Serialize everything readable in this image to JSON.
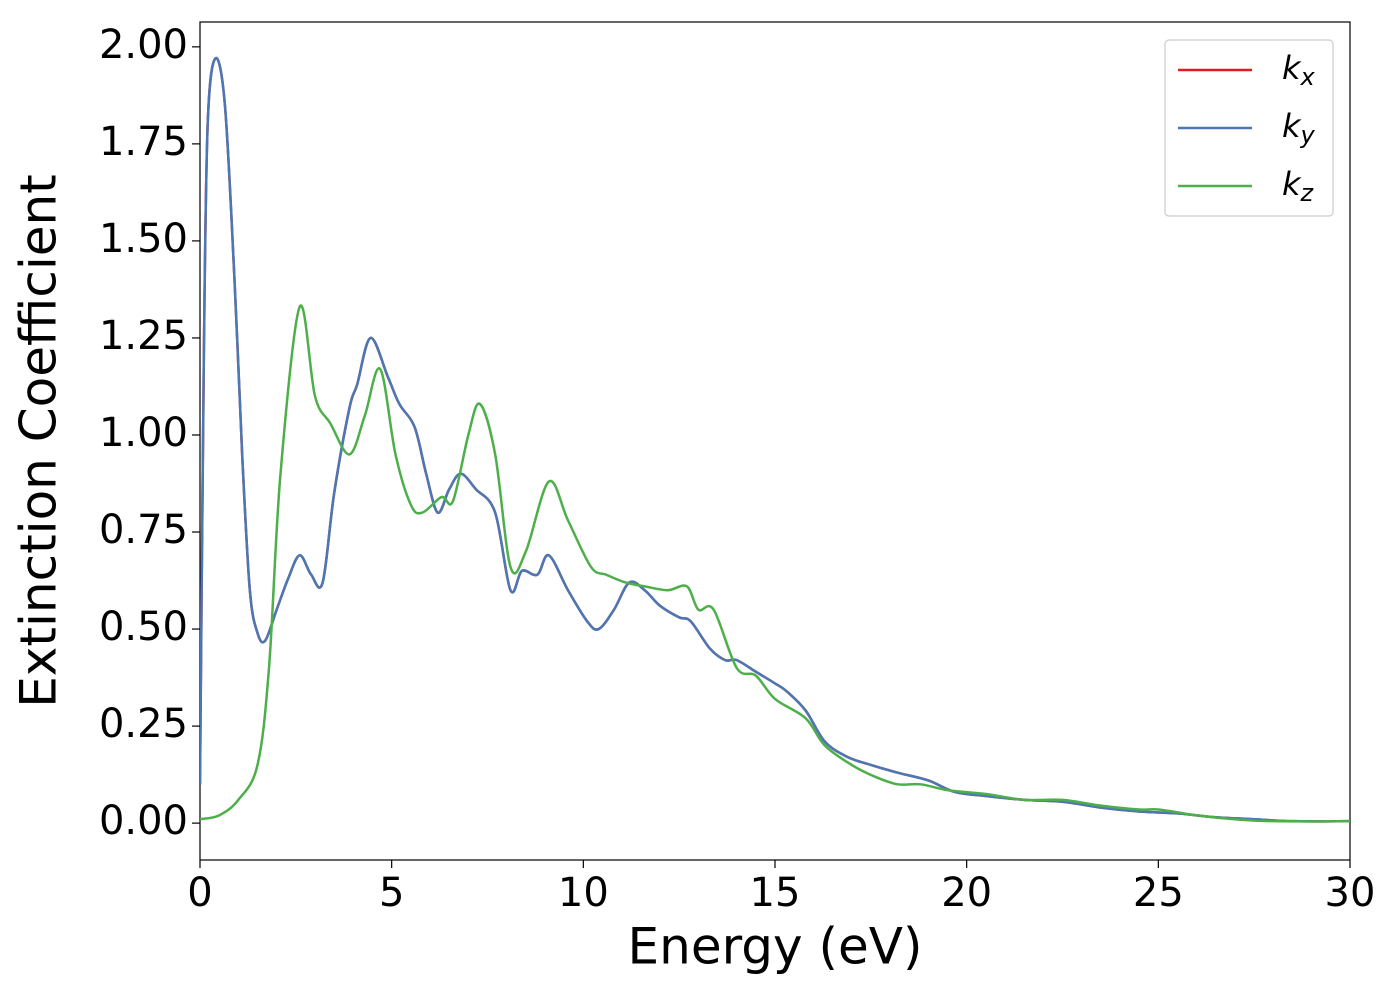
{
  "chart_data": {
    "type": "line",
    "xlabel": "Energy (eV)",
    "ylabel": "Extinction Coefficient",
    "xlim": [
      0,
      30
    ],
    "xticks": [
      0,
      5,
      10,
      15,
      20,
      25,
      30
    ],
    "ylim": [
      -0.095,
      2.064
    ],
    "yticks": [
      {
        "value": 0,
        "label": "0.00"
      },
      {
        "value": 0.25,
        "label": "0.25"
      },
      {
        "value": 0.5,
        "label": "0.50"
      },
      {
        "value": 0.75,
        "label": "0.75"
      },
      {
        "value": 1,
        "label": "1.00"
      },
      {
        "value": 1.25,
        "label": "1.25"
      },
      {
        "value": 1.5,
        "label": "1.50"
      },
      {
        "value": 1.75,
        "label": "1.75"
      },
      {
        "value": 2,
        "label": "2.00"
      }
    ],
    "legend": "upper right",
    "series": [
      {
        "name": "kx",
        "color": "#e41a1c",
        "x": [
          0,
          0.1,
          0.2,
          0.4,
          0.65,
          0.9,
          1.1,
          1.3,
          1.5,
          1.7,
          2.0,
          2.3,
          2.6,
          2.9,
          3.2,
          3.5,
          3.9,
          4.1,
          4.45,
          4.9,
          5.2,
          5.6,
          5.9,
          6.2,
          6.5,
          6.8,
          7.2,
          7.7,
          8.1,
          8.4,
          8.8,
          9.1,
          9.6,
          10.1,
          10.4,
          10.8,
          11.2,
          11.6,
          12.0,
          12.5,
          12.8,
          13.3,
          13.7,
          14.0,
          14.5,
          15.0,
          15.3,
          15.8,
          16.3,
          16.9,
          17.5,
          18.2,
          19.0,
          19.7,
          20.5,
          21.5,
          22.5,
          23.5,
          24.5,
          25.5,
          26.5,
          27.5,
          28.5,
          30
        ],
        "values": [
          0.1,
          1.2,
          1.8,
          1.97,
          1.85,
          1.4,
          0.95,
          0.6,
          0.49,
          0.47,
          0.55,
          0.63,
          0.69,
          0.64,
          0.62,
          0.85,
          1.07,
          1.13,
          1.25,
          1.15,
          1.08,
          1.02,
          0.9,
          0.8,
          0.86,
          0.9,
          0.86,
          0.8,
          0.6,
          0.65,
          0.64,
          0.69,
          0.6,
          0.52,
          0.5,
          0.55,
          0.62,
          0.6,
          0.56,
          0.53,
          0.52,
          0.45,
          0.42,
          0.42,
          0.39,
          0.36,
          0.34,
          0.29,
          0.21,
          0.17,
          0.15,
          0.13,
          0.11,
          0.08,
          0.07,
          0.06,
          0.055,
          0.04,
          0.03,
          0.025,
          0.015,
          0.01,
          0.005,
          0.005
        ]
      },
      {
        "name": "ky",
        "color": "#4a78b4",
        "x": [
          0,
          0.1,
          0.2,
          0.4,
          0.65,
          0.9,
          1.1,
          1.3,
          1.5,
          1.7,
          2.0,
          2.3,
          2.6,
          2.9,
          3.2,
          3.5,
          3.9,
          4.1,
          4.45,
          4.9,
          5.2,
          5.6,
          5.9,
          6.2,
          6.5,
          6.8,
          7.2,
          7.7,
          8.1,
          8.4,
          8.8,
          9.1,
          9.6,
          10.1,
          10.4,
          10.8,
          11.2,
          11.6,
          12.0,
          12.5,
          12.8,
          13.3,
          13.7,
          14.0,
          14.5,
          15.0,
          15.3,
          15.8,
          16.3,
          16.9,
          17.5,
          18.2,
          19.0,
          19.7,
          20.5,
          21.5,
          22.5,
          23.5,
          24.5,
          25.5,
          26.5,
          27.5,
          28.5,
          30
        ],
        "values": [
          0.1,
          1.2,
          1.8,
          1.97,
          1.85,
          1.4,
          0.95,
          0.6,
          0.49,
          0.47,
          0.55,
          0.63,
          0.69,
          0.64,
          0.62,
          0.85,
          1.07,
          1.13,
          1.25,
          1.15,
          1.08,
          1.02,
          0.9,
          0.8,
          0.86,
          0.9,
          0.86,
          0.8,
          0.6,
          0.65,
          0.64,
          0.69,
          0.6,
          0.52,
          0.5,
          0.55,
          0.62,
          0.6,
          0.56,
          0.53,
          0.52,
          0.45,
          0.42,
          0.42,
          0.39,
          0.36,
          0.34,
          0.29,
          0.21,
          0.17,
          0.15,
          0.13,
          0.11,
          0.08,
          0.07,
          0.06,
          0.055,
          0.04,
          0.03,
          0.025,
          0.015,
          0.01,
          0.005,
          0.005
        ]
      },
      {
        "name": "kz",
        "color": "#4daf4a",
        "x": [
          0,
          0.5,
          1.0,
          1.5,
          1.8,
          2.1,
          2.6,
          3.0,
          3.4,
          3.9,
          4.3,
          4.7,
          5.1,
          5.5,
          5.8,
          6.3,
          6.6,
          7.0,
          7.3,
          7.7,
          8.1,
          8.5,
          9.1,
          9.6,
          10.2,
          10.6,
          11.1,
          11.6,
          12.2,
          12.7,
          13.0,
          13.4,
          14.0,
          14.5,
          15.0,
          15.8,
          16.3,
          17.0,
          17.6,
          18.2,
          18.8,
          19.5,
          20.5,
          21.5,
          22.5,
          23.5,
          24.5,
          25,
          26,
          27,
          28,
          30
        ],
        "values": [
          0.01,
          0.02,
          0.06,
          0.15,
          0.4,
          0.9,
          1.33,
          1.1,
          1.03,
          0.95,
          1.05,
          1.17,
          0.95,
          0.82,
          0.8,
          0.84,
          0.83,
          1.0,
          1.08,
          0.95,
          0.66,
          0.7,
          0.88,
          0.78,
          0.66,
          0.64,
          0.62,
          0.61,
          0.6,
          0.61,
          0.55,
          0.55,
          0.4,
          0.38,
          0.32,
          0.27,
          0.2,
          0.15,
          0.12,
          0.1,
          0.1,
          0.085,
          0.075,
          0.06,
          0.06,
          0.045,
          0.035,
          0.035,
          0.02,
          0.01,
          0.005,
          0.005
        ]
      }
    ]
  }
}
